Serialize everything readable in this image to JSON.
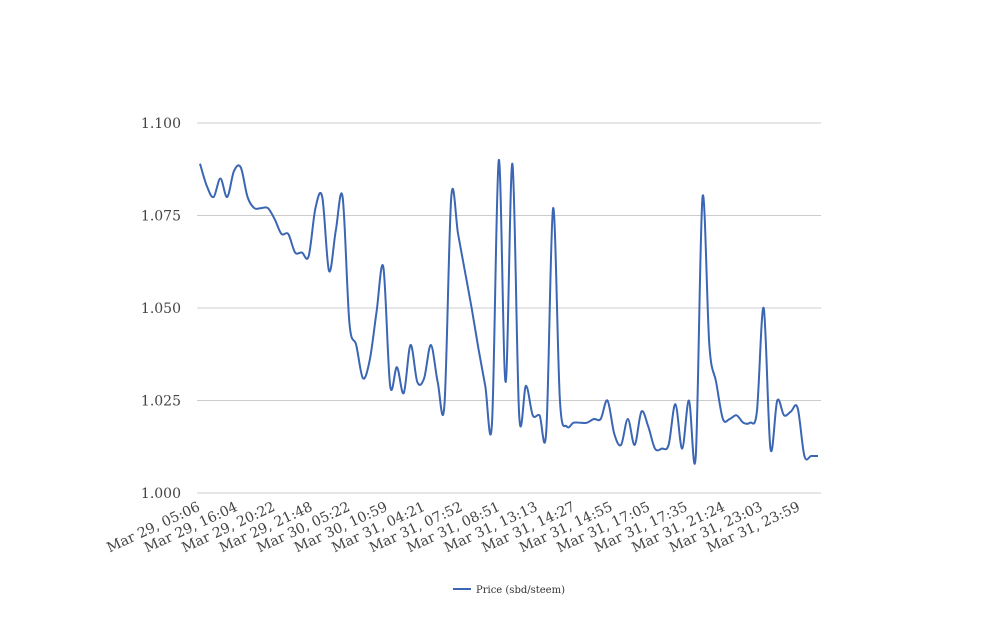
{
  "chart_data": {
    "type": "line",
    "title": "",
    "xlabel": "",
    "ylabel": "",
    "ylim": [
      1.0,
      1.1
    ],
    "yticks": [
      "1.000",
      "1.025",
      "1.050",
      "1.075",
      "1.100"
    ],
    "grid": true,
    "legend_position": "bottom-center",
    "x_tick_labels": [
      "Mar 29, 05:06",
      "Mar 29, 16:04",
      "Mar 29, 20:22",
      "Mar 29, 21:48",
      "Mar 30, 05:22",
      "Mar 30, 10:59",
      "Mar 31, 04:21",
      "Mar 31, 07:52",
      "Mar 31, 08:51",
      "Mar 31, 13:13",
      "Mar 31, 14:27",
      "Mar 31, 14:55",
      "Mar 31, 17:05",
      "Mar 31, 17:35",
      "Mar 31, 21:24",
      "Mar 31, 23:03",
      "Mar 31, 23:59"
    ],
    "series": [
      {
        "name": "Price (sbd/steem)",
        "color": "#3b66b3",
        "values": [
          1.089,
          1.083,
          1.08,
          1.085,
          1.08,
          1.087,
          1.088,
          1.08,
          1.077,
          1.077,
          1.077,
          1.074,
          1.07,
          1.07,
          1.065,
          1.065,
          1.064,
          1.077,
          1.08,
          1.06,
          1.071,
          1.08,
          1.046,
          1.04,
          1.031,
          1.036,
          1.049,
          1.061,
          1.029,
          1.034,
          1.027,
          1.04,
          1.03,
          1.031,
          1.04,
          1.03,
          1.024,
          1.08,
          1.07,
          1.06,
          1.05,
          1.039,
          1.029,
          1.019,
          1.09,
          1.03,
          1.089,
          1.021,
          1.029,
          1.021,
          1.021,
          1.017,
          1.077,
          1.025,
          1.018,
          1.019,
          1.019,
          1.019,
          1.02,
          1.02,
          1.025,
          1.016,
          1.013,
          1.02,
          1.013,
          1.022,
          1.018,
          1.012,
          1.012,
          1.013,
          1.024,
          1.012,
          1.025,
          1.01,
          1.08,
          1.04,
          1.03,
          1.02,
          1.02,
          1.021,
          1.019,
          1.019,
          1.022,
          1.05,
          1.012,
          1.025,
          1.021,
          1.022,
          1.023,
          1.01,
          1.01,
          1.01
        ]
      }
    ]
  }
}
